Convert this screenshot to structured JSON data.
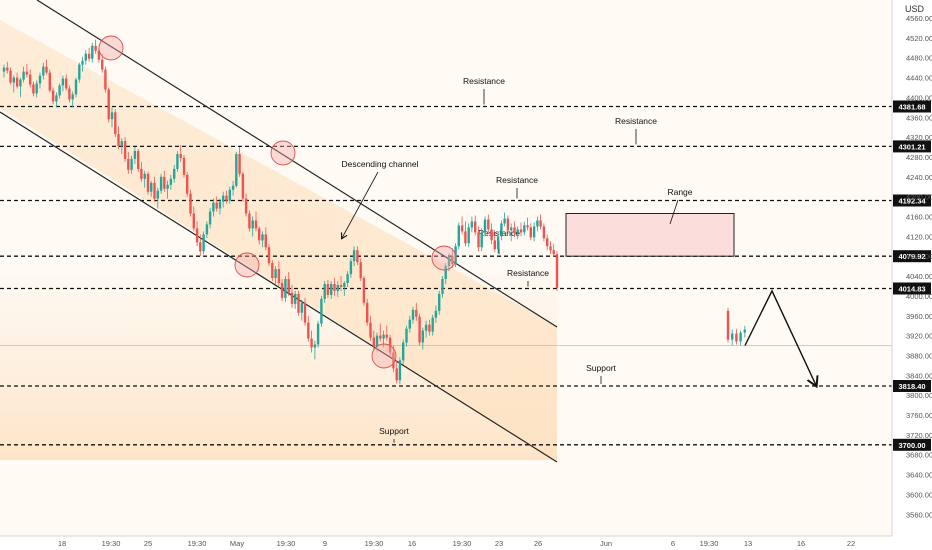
{
  "chart_data": {
    "type": "candlestick",
    "currency": "USD",
    "grid": false,
    "y_ticks": [
      3560,
      3600,
      3640,
      3680,
      3720,
      3760,
      3800,
      3840,
      3880,
      3920,
      3960,
      4000,
      4040,
      4080,
      4120,
      4160,
      4200,
      4240,
      4280,
      4320,
      4360,
      4400,
      4440,
      4480,
      4520,
      4560
    ],
    "y_ticks_fmt": [
      "3560.00",
      "3600.00",
      "3640.00",
      "3680.00",
      "3720.00",
      "3760.00",
      "3800.00",
      "3840.00",
      "3880.00",
      "3920.00",
      "3960.00",
      "4000.00",
      "4040.00",
      "4080.00",
      "4120.00",
      "4160.00",
      "4200.00",
      "4240.00",
      "4280.00",
      "4320.00",
      "4360.00",
      "4400.00",
      "4440.00",
      "4480.00",
      "4520.00",
      "4560.00"
    ],
    "x_ticks": [
      "18",
      "19:30",
      "25",
      "19:30",
      "May",
      "19:30",
      "9",
      "19:30",
      "16",
      "19:30",
      "23",
      "26",
      "Jun",
      "6",
      "19:30",
      "13",
      "16",
      "22"
    ],
    "levels": [
      {
        "value": 4381.68,
        "label": "4381.68",
        "annotation": "Resistance"
      },
      {
        "value": 4301.21,
        "label": "4301.21",
        "annotation": "Resistance"
      },
      {
        "value": 4192.34,
        "label": "4192.34",
        "annotation": "Resistance"
      },
      {
        "value": 4079.92,
        "label": "4079.92",
        "annotation": "Resistance"
      },
      {
        "value": 4014.83,
        "label": "4014.83",
        "annotation": "Resistance"
      },
      {
        "value": 3818.4,
        "label": "3818.40",
        "annotation": "Support"
      },
      {
        "value": 3700.0,
        "label": "3700.00",
        "annotation": "Support"
      }
    ],
    "channel_label": "Descending channel",
    "range_label": "Range",
    "range_box": {
      "top": 4166,
      "bottom": 4080
    },
    "projection": [
      3900,
      4010,
      3820
    ],
    "candles_ohlc": [
      [
        4452,
        4466,
        4440,
        4460
      ],
      [
        4460,
        4472,
        4448,
        4454
      ],
      [
        4454,
        4460,
        4426,
        4430
      ],
      [
        4430,
        4444,
        4410,
        4440
      ],
      [
        4440,
        4450,
        4418,
        4422
      ],
      [
        4422,
        4440,
        4400,
        4436
      ],
      [
        4436,
        4462,
        4430,
        4452
      ],
      [
        4452,
        4468,
        4440,
        4446
      ],
      [
        4446,
        4456,
        4420,
        4426
      ],
      [
        4426,
        4432,
        4402,
        4408
      ],
      [
        4408,
        4434,
        4400,
        4428
      ],
      [
        4428,
        4450,
        4418,
        4444
      ],
      [
        4444,
        4470,
        4436,
        4462
      ],
      [
        4462,
        4476,
        4446,
        4450
      ],
      [
        4450,
        4456,
        4410,
        4414
      ],
      [
        4414,
        4420,
        4386,
        4392
      ],
      [
        4392,
        4410,
        4380,
        4404
      ],
      [
        4404,
        4428,
        4398,
        4424
      ],
      [
        4424,
        4444,
        4412,
        4438
      ],
      [
        4438,
        4446,
        4414,
        4418
      ],
      [
        4418,
        4424,
        4390,
        4396
      ],
      [
        4396,
        4412,
        4380,
        4406
      ],
      [
        4406,
        4440,
        4400,
        4436
      ],
      [
        4436,
        4470,
        4430,
        4466
      ],
      [
        4466,
        4482,
        4452,
        4474
      ],
      [
        4474,
        4496,
        4466,
        4488
      ],
      [
        4488,
        4500,
        4472,
        4478
      ],
      [
        4478,
        4510,
        4470,
        4504
      ],
      [
        4504,
        4516,
        4488,
        4494
      ],
      [
        4494,
        4500,
        4470,
        4476
      ],
      [
        4476,
        4488,
        4450,
        4456
      ],
      [
        4456,
        4462,
        4410,
        4416
      ],
      [
        4416,
        4420,
        4350,
        4356
      ],
      [
        4356,
        4380,
        4340,
        4370
      ],
      [
        4370,
        4376,
        4320,
        4326
      ],
      [
        4326,
        4342,
        4296,
        4302
      ],
      [
        4302,
        4318,
        4286,
        4312
      ],
      [
        4312,
        4320,
        4270,
        4276
      ],
      [
        4276,
        4290,
        4246,
        4254
      ],
      [
        4254,
        4282,
        4246,
        4276
      ],
      [
        4276,
        4300,
        4266,
        4292
      ],
      [
        4292,
        4296,
        4250,
        4256
      ],
      [
        4256,
        4270,
        4230,
        4236
      ],
      [
        4236,
        4252,
        4218,
        4246
      ],
      [
        4246,
        4250,
        4204,
        4210
      ],
      [
        4210,
        4232,
        4200,
        4228
      ],
      [
        4228,
        4240,
        4190,
        4196
      ],
      [
        4196,
        4218,
        4176,
        4212
      ],
      [
        4212,
        4246,
        4206,
        4240
      ],
      [
        4240,
        4252,
        4210,
        4216
      ],
      [
        4216,
        4232,
        4196,
        4224
      ],
      [
        4224,
        4244,
        4214,
        4236
      ],
      [
        4236,
        4264,
        4228,
        4256
      ],
      [
        4256,
        4292,
        4250,
        4286
      ],
      [
        4286,
        4304,
        4270,
        4278
      ],
      [
        4278,
        4284,
        4238,
        4244
      ],
      [
        4244,
        4250,
        4200,
        4206
      ],
      [
        4206,
        4214,
        4160,
        4166
      ],
      [
        4166,
        4180,
        4130,
        4136
      ],
      [
        4136,
        4150,
        4100,
        4108
      ],
      [
        4108,
        4124,
        4080,
        4090
      ],
      [
        4090,
        4130,
        4084,
        4124
      ],
      [
        4124,
        4150,
        4116,
        4144
      ],
      [
        4144,
        4178,
        4136,
        4170
      ],
      [
        4170,
        4196,
        4160,
        4188
      ],
      [
        4188,
        4200,
        4170,
        4176
      ],
      [
        4176,
        4196,
        4164,
        4190
      ],
      [
        4190,
        4210,
        4178,
        4202
      ],
      [
        4202,
        4212,
        4186,
        4192
      ],
      [
        4192,
        4220,
        4186,
        4214
      ],
      [
        4214,
        4232,
        4202,
        4222
      ],
      [
        4222,
        4290,
        4218,
        4286
      ],
      [
        4286,
        4300,
        4240,
        4246
      ],
      [
        4246,
        4250,
        4190,
        4196
      ],
      [
        4196,
        4206,
        4160,
        4166
      ],
      [
        4166,
        4172,
        4130,
        4136
      ],
      [
        4136,
        4160,
        4120,
        4152
      ],
      [
        4152,
        4170,
        4130,
        4136
      ],
      [
        4136,
        4140,
        4104,
        4112
      ],
      [
        4112,
        4130,
        4098,
        4124
      ],
      [
        4124,
        4138,
        4092,
        4098
      ],
      [
        4098,
        4104,
        4060,
        4066
      ],
      [
        4066,
        4072,
        4030,
        4036
      ],
      [
        4036,
        4060,
        4022,
        4054
      ],
      [
        4054,
        4070,
        4020,
        4026
      ],
      [
        4026,
        4034,
        3990,
        3996
      ],
      [
        3996,
        4040,
        3988,
        4034
      ],
      [
        4034,
        4048,
        4000,
        4006
      ],
      [
        4006,
        4022,
        3976,
        3984
      ],
      [
        3984,
        4010,
        3974,
        4004
      ],
      [
        4004,
        4010,
        3960,
        3966
      ],
      [
        3966,
        3992,
        3950,
        3986
      ],
      [
        3986,
        3996,
        3940,
        3946
      ],
      [
        3946,
        3960,
        3908,
        3914
      ],
      [
        3914,
        3930,
        3886,
        3896
      ],
      [
        3896,
        3910,
        3872,
        3902
      ],
      [
        3902,
        3950,
        3896,
        3944
      ],
      [
        3944,
        4000,
        3938,
        3994
      ],
      [
        3994,
        4030,
        3986,
        4024
      ],
      [
        4024,
        4032,
        3996,
        4002
      ],
      [
        4002,
        4030,
        3994,
        4024
      ],
      [
        4024,
        4036,
        4000,
        4010
      ],
      [
        4010,
        4030,
        3998,
        4022
      ],
      [
        4022,
        4040,
        4010,
        4018
      ],
      [
        4018,
        4030,
        4000,
        4026
      ],
      [
        4026,
        4050,
        4018,
        4044
      ],
      [
        4044,
        4076,
        4036,
        4070
      ],
      [
        4070,
        4100,
        4060,
        4092
      ],
      [
        4092,
        4100,
        4062,
        4068
      ],
      [
        4068,
        4076,
        4030,
        4036
      ],
      [
        4036,
        4040,
        3980,
        3986
      ],
      [
        3986,
        3994,
        3940,
        3946
      ],
      [
        3946,
        3960,
        3910,
        3916
      ],
      [
        3916,
        3930,
        3890,
        3898
      ],
      [
        3898,
        3926,
        3888,
        3920
      ],
      [
        3920,
        3944,
        3908,
        3914
      ],
      [
        3914,
        3930,
        3896,
        3922
      ],
      [
        3922,
        3940,
        3910,
        3916
      ],
      [
        3916,
        3922,
        3880,
        3886
      ],
      [
        3886,
        3900,
        3846,
        3854
      ],
      [
        3854,
        3870,
        3824,
        3830
      ],
      [
        3830,
        3876,
        3822,
        3870
      ],
      [
        3870,
        3912,
        3862,
        3906
      ],
      [
        3906,
        3940,
        3898,
        3934
      ],
      [
        3934,
        3960,
        3926,
        3952
      ],
      [
        3952,
        3978,
        3944,
        3972
      ],
      [
        3972,
        3986,
        3950,
        3958
      ],
      [
        3958,
        3964,
        3900,
        3906
      ],
      [
        3906,
        3936,
        3892,
        3930
      ],
      [
        3930,
        3950,
        3916,
        3942
      ],
      [
        3942,
        3952,
        3920,
        3928
      ],
      [
        3928,
        3962,
        3920,
        3956
      ],
      [
        3956,
        3980,
        3946,
        3970
      ],
      [
        3970,
        4010,
        3962,
        4004
      ],
      [
        4004,
        4040,
        3996,
        4034
      ],
      [
        4034,
        4066,
        4024,
        4060
      ],
      [
        4060,
        4086,
        4050,
        4080
      ],
      [
        4080,
        4096,
        4056,
        4064
      ],
      [
        4064,
        4106,
        4058,
        4100
      ],
      [
        4100,
        4148,
        4094,
        4142
      ],
      [
        4142,
        4160,
        4124,
        4130
      ],
      [
        4130,
        4150,
        4100,
        4106
      ],
      [
        4106,
        4146,
        4098,
        4138
      ],
      [
        4138,
        4160,
        4128,
        4150
      ],
      [
        4150,
        4162,
        4122,
        4128
      ],
      [
        4128,
        4140,
        4090,
        4098
      ],
      [
        4098,
        4136,
        4090,
        4128
      ],
      [
        4128,
        4160,
        4120,
        4154
      ],
      [
        4154,
        4164,
        4128,
        4134
      ],
      [
        4134,
        4146,
        4104,
        4112
      ],
      [
        4112,
        4130,
        4088,
        4094
      ],
      [
        4094,
        4126,
        4086,
        4120
      ],
      [
        4120,
        4152,
        4112,
        4146
      ],
      [
        4146,
        4168,
        4140,
        4156
      ],
      [
        4156,
        4162,
        4126,
        4132
      ],
      [
        4132,
        4146,
        4110,
        4138
      ],
      [
        4138,
        4150,
        4118,
        4126
      ],
      [
        4126,
        4140,
        4114,
        4134
      ],
      [
        4134,
        4148,
        4120,
        4128
      ],
      [
        4128,
        4150,
        4122,
        4142
      ],
      [
        4142,
        4158,
        4132,
        4138
      ],
      [
        4138,
        4146,
        4112,
        4118
      ],
      [
        4118,
        4148,
        4110,
        4140
      ],
      [
        4140,
        4160,
        4130,
        4152
      ],
      [
        4152,
        4164,
        4134,
        4140
      ],
      [
        4140,
        4146,
        4110,
        4116
      ],
      [
        4116,
        4124,
        4092,
        4100
      ],
      [
        4100,
        4110,
        4084,
        4092
      ],
      [
        4092,
        4104,
        4078,
        4084
      ],
      [
        4084,
        4090,
        4010,
        4016
      ],
      [
        3970,
        3976,
        3906,
        3912
      ],
      [
        3912,
        3932,
        3900,
        3924
      ],
      [
        3924,
        3934,
        3902,
        3908
      ],
      [
        3908,
        3930,
        3900,
        3926
      ],
      [
        3926,
        3940,
        3916,
        3932
      ]
    ]
  }
}
